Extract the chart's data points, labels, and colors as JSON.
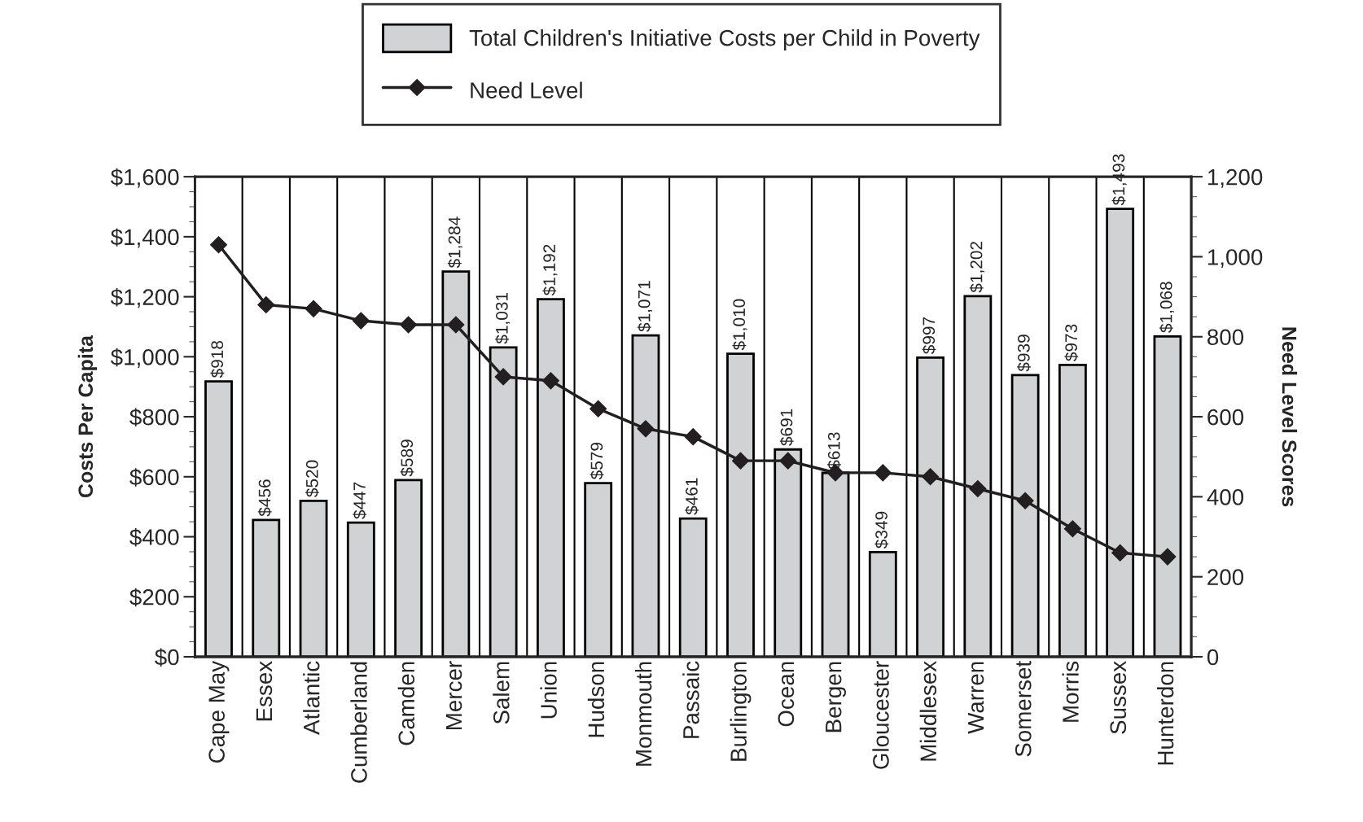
{
  "chart_data": {
    "type": "bar",
    "ylabel": "Costs Per Capita",
    "y2label": "Need Level Scores",
    "categories": [
      "Cape May",
      "Essex",
      "Atlantic",
      "Cumberland",
      "Camden",
      "Mercer",
      "Salem",
      "Union",
      "Hudson",
      "Monmouth",
      "Passaic",
      "Burlington",
      "Ocean",
      "Bergen",
      "Gloucester",
      "Middlesex",
      "Warren",
      "Somerset",
      "Morris",
      "Sussex",
      "Hunterdon"
    ],
    "series": [
      {
        "name": "Total Children's Initiative Costs per Child in Poverty",
        "color": "#d1d2d4",
        "values": [
          918,
          456,
          520,
          447,
          589,
          1284,
          1031,
          1192,
          579,
          1071,
          461,
          1010,
          691,
          613,
          349,
          997,
          1202,
          939,
          973,
          1493,
          1068
        ],
        "value_labels": [
          "$918",
          "$456",
          "$520",
          "$447",
          "$589",
          "$1,284",
          "$1,031",
          "$1,192",
          "$579",
          "$1,071",
          "$461",
          "$1,010",
          "$691",
          "$613",
          "$349",
          "$997",
          "$1,202",
          "$939",
          "$973",
          "$1,493",
          "$1,068"
        ]
      },
      {
        "name": "Need Level",
        "type": "line",
        "axis": "y2",
        "color": "#231f20",
        "marker": "diamond",
        "values": [
          1030,
          880,
          870,
          840,
          830,
          830,
          700,
          690,
          620,
          570,
          550,
          490,
          490,
          460,
          460,
          450,
          420,
          390,
          320,
          260,
          250
        ]
      }
    ],
    "ylim": [
      0,
      1600
    ],
    "yticks": [
      {
        "value": 0,
        "label": "$0"
      },
      {
        "value": 200,
        "label": "$200"
      },
      {
        "value": 400,
        "label": "$400"
      },
      {
        "value": 600,
        "label": "$600"
      },
      {
        "value": 800,
        "label": "$800"
      },
      {
        "value": 1000,
        "label": "$1,000"
      },
      {
        "value": 1200,
        "label": "$1,200"
      },
      {
        "value": 1400,
        "label": "$1,400"
      },
      {
        "value": 1600,
        "label": "$1,600"
      }
    ],
    "y2lim": [
      0,
      1200
    ],
    "y2ticks": [
      0,
      200,
      400,
      600,
      800,
      {
        "value": 1000,
        "label": "1,000"
      },
      {
        "value": 1200,
        "label": "1,200"
      }
    ],
    "grid": "x",
    "legend": "top"
  }
}
